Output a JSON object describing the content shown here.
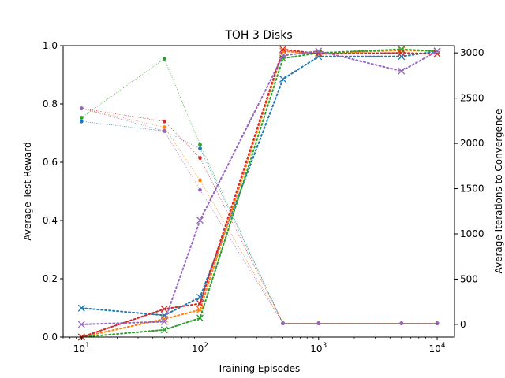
{
  "chart_data": {
    "type": "line",
    "title": "TOH 3 Disks",
    "xlabel": "Training Episodes",
    "ylabel": "Average Test Reward",
    "y2label": "Average Iterations to Convergence",
    "xscale": "log",
    "xlim": [
      7,
      14000
    ],
    "ylim": [
      0,
      1.0
    ],
    "y2lim": [
      -140,
      3080
    ],
    "x": [
      10,
      50,
      100,
      500,
      1000,
      5000,
      10000
    ],
    "x_ticks": [
      {
        "value": 10,
        "base": "10",
        "exp": "1"
      },
      {
        "value": 100,
        "base": "10",
        "exp": "2"
      },
      {
        "value": 1000,
        "base": "10",
        "exp": "3"
      },
      {
        "value": 10000,
        "base": "10",
        "exp": "4"
      }
    ],
    "y_ticks": [
      "0.0",
      "0.2",
      "0.4",
      "0.6",
      "0.8",
      "1.0"
    ],
    "y2_ticks": [
      "0",
      "500",
      "1000",
      "1500",
      "2000",
      "2500",
      "3000"
    ],
    "grid": false,
    "reward_series": [
      {
        "color": "#1f77b4",
        "values": [
          0.74,
          0.707,
          0.647,
          0.047,
          0.047,
          0.047,
          0.047
        ]
      },
      {
        "color": "#ff7f0e",
        "values": [
          0.785,
          0.72,
          0.538,
          0.047,
          0.047,
          0.047,
          0.047
        ]
      },
      {
        "color": "#2ca02c",
        "values": [
          0.753,
          0.955,
          0.66,
          0.047,
          0.047,
          0.047,
          0.047
        ]
      },
      {
        "color": "#d62728",
        "values": [
          0.785,
          0.74,
          0.615,
          0.047,
          0.047,
          0.047,
          0.047
        ]
      },
      {
        "color": "#9467bd",
        "values": [
          0.785,
          0.707,
          0.505,
          0.047,
          0.047,
          0.047,
          0.047
        ]
      }
    ],
    "iteration_series": [
      {
        "color": "#1f77b4",
        "values": [
          180,
          100,
          300,
          2710,
          2960,
          2960,
          3020
        ]
      },
      {
        "color": "#ff7f0e",
        "values": [
          -140,
          60,
          160,
          3020,
          2990,
          3030,
          3020
        ]
      },
      {
        "color": "#2ca02c",
        "values": [
          -140,
          -60,
          70,
          2940,
          3000,
          3040,
          3020
        ]
      },
      {
        "color": "#d62728",
        "values": [
          -140,
          170,
          230,
          3040,
          2990,
          3000,
          2990
        ]
      },
      {
        "color": "#9467bd",
        "values": [
          0,
          30,
          1150,
          2970,
          3020,
          2800,
          3020
        ]
      }
    ]
  }
}
